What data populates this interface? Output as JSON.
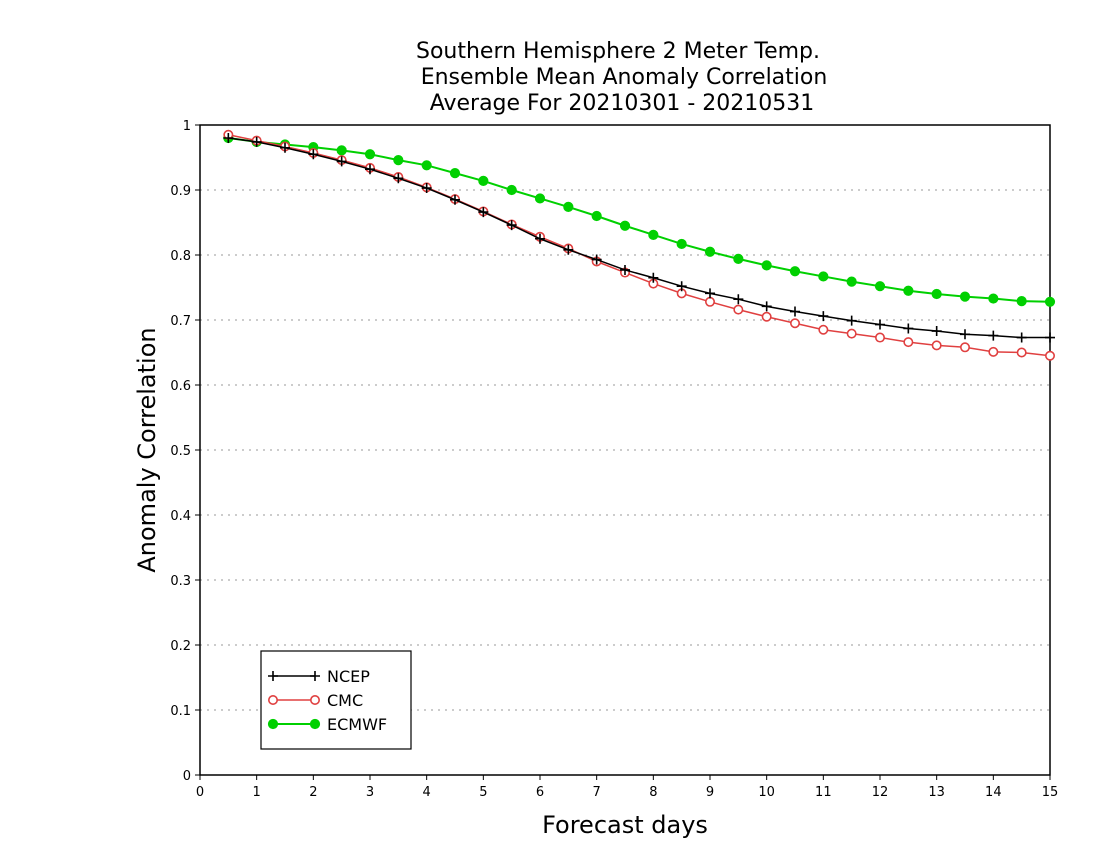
{
  "chart_data": {
    "type": "line",
    "title_lines": [
      "Southern Hemisphere 2 Meter Temp.",
      "Ensemble Mean Anomaly Correlation",
      "Average For 20210301 - 20210531"
    ],
    "xlabel": "Forecast days",
    "ylabel": "Anomaly Correlation",
    "xlim": [
      0,
      15
    ],
    "ylim": [
      0,
      1
    ],
    "x_ticks": [
      "0",
      "1",
      "2",
      "3",
      "4",
      "5",
      "6",
      "7",
      "8",
      "9",
      "10",
      "11",
      "12",
      "13",
      "14",
      "15"
    ],
    "y_ticks": [
      "0",
      "0.1",
      "0.2",
      "0.3",
      "0.4",
      "0.5",
      "0.6",
      "0.7",
      "0.8",
      "0.9",
      "1"
    ],
    "grid": "horizontal dotted",
    "legend_position": "bottom-left",
    "x": [
      0.5,
      1,
      1.5,
      2,
      2.5,
      3,
      3.5,
      4,
      4.5,
      5,
      5.5,
      6,
      6.5,
      7,
      7.5,
      8,
      8.5,
      9,
      9.5,
      10,
      10.5,
      11,
      11.5,
      12,
      12.5,
      13,
      13.5,
      14,
      14.5,
      15
    ],
    "series": [
      {
        "name": "NCEP",
        "color": "#000000",
        "marker": "plus",
        "values": [
          0.98,
          0.974,
          0.965,
          0.955,
          0.944,
          0.932,
          0.918,
          0.903,
          0.885,
          0.866,
          0.846,
          0.825,
          0.808,
          0.793,
          0.777,
          0.765,
          0.752,
          0.741,
          0.732,
          0.721,
          0.713,
          0.706,
          0.699,
          0.693,
          0.687,
          0.683,
          0.678,
          0.676,
          0.673,
          0.673
        ]
      },
      {
        "name": "CMC",
        "color": "#e04040",
        "marker": "open-circle",
        "values": [
          0.985,
          0.976,
          0.967,
          0.957,
          0.946,
          0.934,
          0.92,
          0.904,
          0.886,
          0.867,
          0.847,
          0.828,
          0.81,
          0.79,
          0.773,
          0.756,
          0.741,
          0.728,
          0.716,
          0.705,
          0.695,
          0.685,
          0.679,
          0.673,
          0.666,
          0.661,
          0.658,
          0.651,
          0.65,
          0.645
        ]
      },
      {
        "name": "ECMWF",
        "color": "#00d000",
        "marker": "filled-circle",
        "values": [
          0.98,
          0.974,
          0.97,
          0.966,
          0.961,
          0.955,
          0.946,
          0.938,
          0.926,
          0.914,
          0.9,
          0.887,
          0.874,
          0.86,
          0.845,
          0.831,
          0.817,
          0.805,
          0.794,
          0.784,
          0.775,
          0.767,
          0.759,
          0.752,
          0.745,
          0.74,
          0.736,
          0.733,
          0.729,
          0.728
        ]
      }
    ]
  }
}
